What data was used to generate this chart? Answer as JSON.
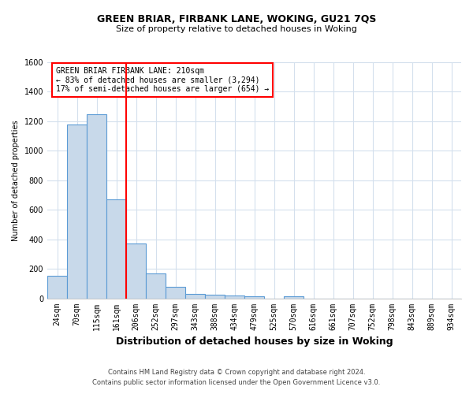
{
  "title": "GREEN BRIAR, FIRBANK LANE, WOKING, GU21 7QS",
  "subtitle": "Size of property relative to detached houses in Woking",
  "xlabel": "Distribution of detached houses by size in Woking",
  "ylabel": "Number of detached properties",
  "categories": [
    "24sqm",
    "70sqm",
    "115sqm",
    "161sqm",
    "206sqm",
    "252sqm",
    "297sqm",
    "343sqm",
    "388sqm",
    "434sqm",
    "479sqm",
    "525sqm",
    "570sqm",
    "616sqm",
    "661sqm",
    "707sqm",
    "752sqm",
    "798sqm",
    "843sqm",
    "889sqm",
    "934sqm"
  ],
  "values": [
    155,
    1180,
    1250,
    670,
    370,
    170,
    80,
    30,
    25,
    20,
    15,
    0,
    15,
    0,
    0,
    0,
    0,
    0,
    0,
    0,
    0
  ],
  "bar_color": "#c8d9ea",
  "bar_edge_color": "#5b9bd5",
  "red_line_x": 3.5,
  "annotation_text_line1": "GREEN BRIAR FIRBANK LANE: 210sqm",
  "annotation_text_line2": "← 83% of detached houses are smaller (3,294)",
  "annotation_text_line3": "17% of semi-detached houses are larger (654) →",
  "ylim_min": 0,
  "ylim_max": 1600,
  "yticks": [
    0,
    200,
    400,
    600,
    800,
    1000,
    1200,
    1400,
    1600
  ],
  "footer_line1": "Contains HM Land Registry data © Crown copyright and database right 2024.",
  "footer_line2": "Contains public sector information licensed under the Open Government Licence v3.0.",
  "background_color": "#ffffff",
  "grid_color": "#d4e0ed",
  "title_fontsize": 9,
  "subtitle_fontsize": 8,
  "annotation_fontsize": 7,
  "xlabel_fontsize": 9,
  "ylabel_fontsize": 7,
  "tick_fontsize": 7,
  "footer_fontsize": 6
}
